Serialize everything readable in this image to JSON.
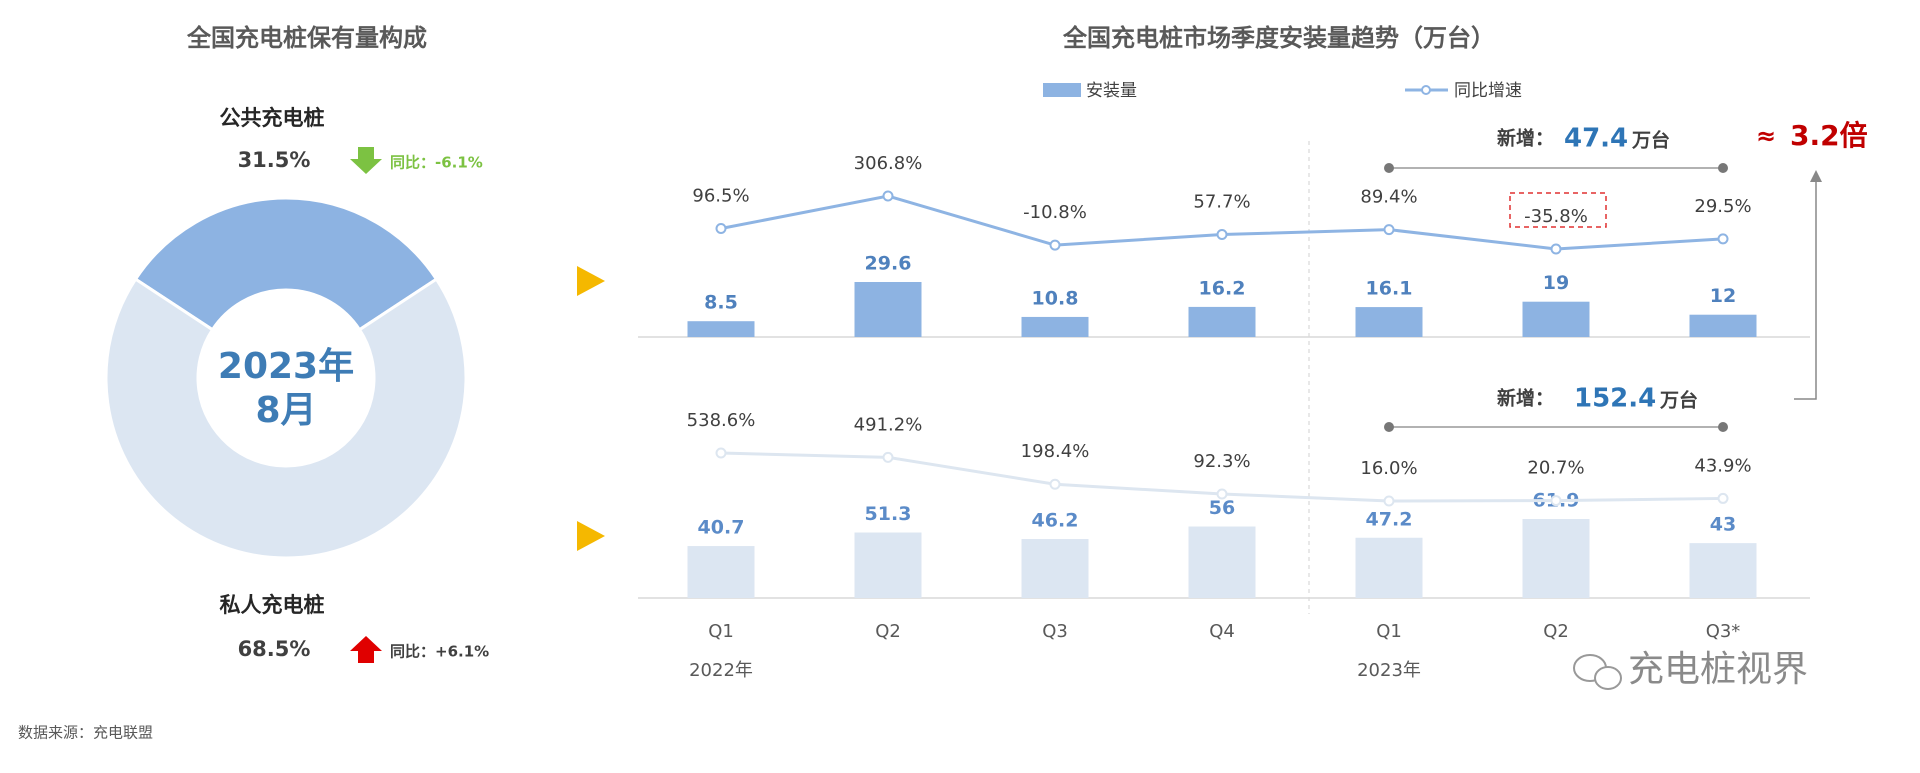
{
  "chart_data": [
    {
      "type": "pie",
      "title": "全国充电桩保有量构成",
      "center_label": [
        "2023年",
        "8月"
      ],
      "categories": [
        "公共充电桩",
        "私人充电桩"
      ],
      "values": [
        31.5,
        68.5
      ],
      "value_labels": [
        "31.5%",
        "68.5%"
      ],
      "colors": [
        "#8db3e2",
        "#dce6f2"
      ],
      "yoy": [
        "同比：-6.1%",
        "同比：+6.1%"
      ],
      "yoy_colors": [
        "#7cc242",
        "#e00000"
      ]
    },
    {
      "type": "combo",
      "title": "全国充电桩市场季度安装量趋势（万台）",
      "categories": [
        "Q1",
        "Q2",
        "Q3",
        "Q4",
        "Q1",
        "Q2",
        "Q3*"
      ],
      "x_groups": [
        "2022年",
        null,
        null,
        null,
        "2023年",
        null,
        null
      ],
      "series": [
        {
          "name": "安装量",
          "color": "#8db3e2"
        },
        {
          "name": "同比增速",
          "color": "#8eb4e3"
        }
      ],
      "panels": [
        {
          "bars": [
            8.5,
            29.6,
            10.8,
            16.2,
            16.1,
            19,
            12
          ],
          "bar_color": "#8db3e2",
          "line": [
            96.5,
            306.8,
            -10.8,
            57.7,
            89.4,
            -35.8,
            29.5
          ],
          "line_labels": [
            "96.5%",
            "306.8%",
            "-10.8%",
            "57.7%",
            "89.4%",
            "-35.8%",
            "29.5%"
          ],
          "line_color": "#8eb4e3",
          "total_prefix": "新增：",
          "total": 47.4,
          "total_unit": "万台"
        },
        {
          "bars": [
            40.7,
            51.3,
            46.2,
            56,
            47.2,
            61.9,
            43
          ],
          "bar_color": "#dce6f2",
          "line": [
            538.6,
            491.2,
            198.4,
            92.3,
            16.0,
            20.7,
            43.9
          ],
          "line_labels": [
            "538.6%",
            "491.2%",
            "198.4%",
            "92.3%",
            "16.0%",
            "20.7%",
            "43.9%"
          ],
          "line_color": "#dde6f0",
          "total_prefix": "新增：",
          "total": 152.4,
          "total_unit": "万台"
        }
      ],
      "ratio_symbol": "≈",
      "ratio_label": "3.2倍"
    },
    {
      "type": "note",
      "source": "数据来源：充电联盟",
      "brand": "充电桩视界"
    }
  ]
}
